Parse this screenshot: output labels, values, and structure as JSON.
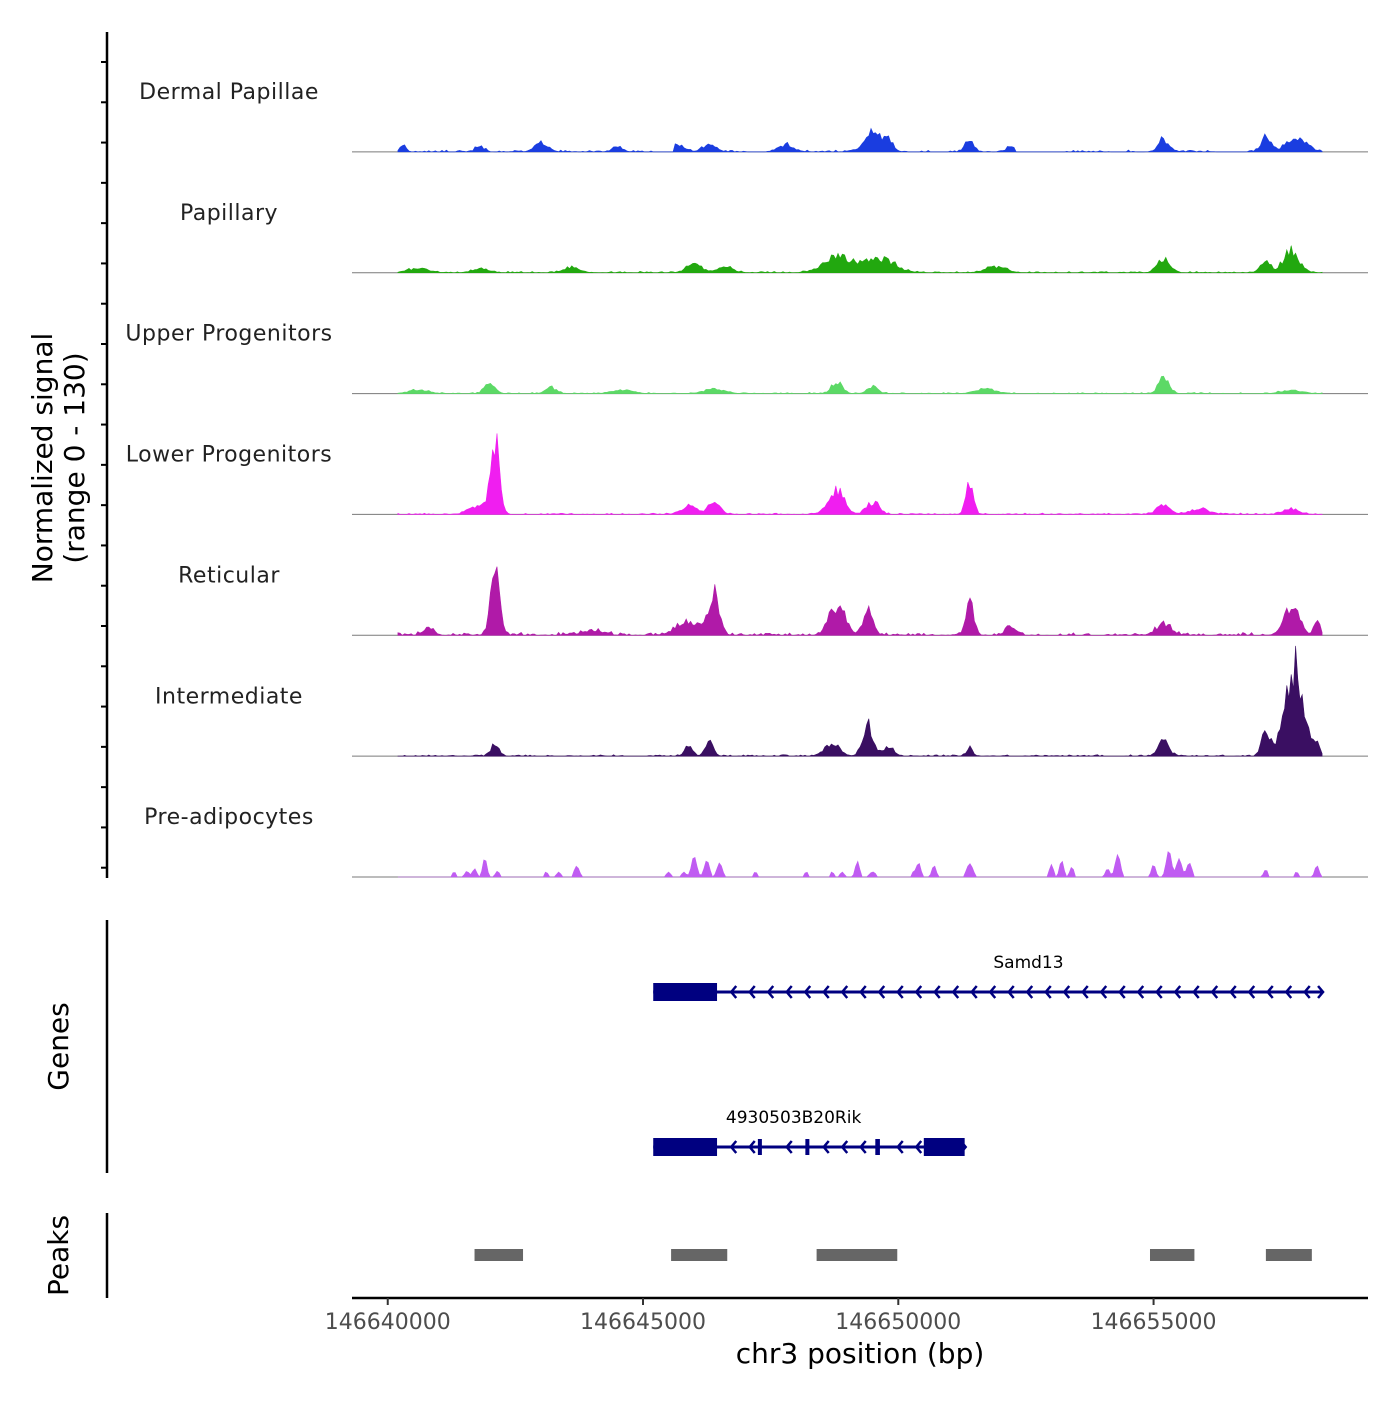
{
  "chart_data": {
    "type": "area",
    "title": "",
    "chromosome": "chr3",
    "xlabel": "chr3 position (bp)",
    "xlim": [
      146639300,
      146659200
    ],
    "xticks": [
      146640000,
      146645000,
      146650000,
      146655000
    ],
    "xtick_labels": [
      "146640000",
      "146645000",
      "146650000",
      "146655000"
    ],
    "ylabel_line1": "Normalized signal",
    "ylabel_line2": "(range 0 - 130)",
    "ylim": [
      0,
      130
    ],
    "data_start": 146640200,
    "data_end": 146658300,
    "coverage_tracks": [
      {
        "name": "Dermal Papillae",
        "color": "#1a3de0",
        "noise": 2.5,
        "gaps": [
          [
            146645300,
            146645600
          ],
          [
            146647200,
            146647400
          ],
          [
            146650600,
            146650900
          ],
          [
            146652300,
            146653200
          ],
          [
            146654200,
            146654500
          ],
          [
            146656200,
            146656700
          ]
        ],
        "peaks": [
          {
            "pos": 146640300,
            "height": 7,
            "width": 60
          },
          {
            "pos": 146641800,
            "height": 6,
            "width": 80
          },
          {
            "pos": 146643000,
            "height": 11,
            "width": 120
          },
          {
            "pos": 146644500,
            "height": 6,
            "width": 100
          },
          {
            "pos": 146645700,
            "height": 8,
            "width": 120
          },
          {
            "pos": 146646300,
            "height": 9,
            "width": 120
          },
          {
            "pos": 146647800,
            "height": 8,
            "width": 150
          },
          {
            "pos": 146649500,
            "height": 22,
            "width": 150
          },
          {
            "pos": 146649800,
            "height": 13,
            "width": 100
          },
          {
            "pos": 146651400,
            "height": 15,
            "width": 80
          },
          {
            "pos": 146652200,
            "height": 7,
            "width": 80
          },
          {
            "pos": 146655200,
            "height": 14,
            "width": 100
          },
          {
            "pos": 146657200,
            "height": 17,
            "width": 100
          },
          {
            "pos": 146657800,
            "height": 15,
            "width": 200
          }
        ]
      },
      {
        "name": "Papillary",
        "color": "#22a80f",
        "noise": 2,
        "gaps": [],
        "peaks": [
          {
            "pos": 146640600,
            "height": 5,
            "width": 200
          },
          {
            "pos": 146641800,
            "height": 5,
            "width": 150
          },
          {
            "pos": 146643600,
            "height": 6,
            "width": 150
          },
          {
            "pos": 146646000,
            "height": 10,
            "width": 150
          },
          {
            "pos": 146646600,
            "height": 7,
            "width": 150
          },
          {
            "pos": 146648800,
            "height": 20,
            "width": 250
          },
          {
            "pos": 146649600,
            "height": 17,
            "width": 300
          },
          {
            "pos": 146651900,
            "height": 7,
            "width": 200
          },
          {
            "pos": 146655200,
            "height": 16,
            "width": 120
          },
          {
            "pos": 146657200,
            "height": 13,
            "width": 100
          },
          {
            "pos": 146657700,
            "height": 25,
            "width": 150
          }
        ]
      },
      {
        "name": "Upper Progenitors",
        "color": "#5cd966",
        "noise": 1.5,
        "gaps": [],
        "peaks": [
          {
            "pos": 146640600,
            "height": 4,
            "width": 200
          },
          {
            "pos": 146642000,
            "height": 12,
            "width": 100
          },
          {
            "pos": 146643200,
            "height": 7,
            "width": 100
          },
          {
            "pos": 146644600,
            "height": 4,
            "width": 200
          },
          {
            "pos": 146646400,
            "height": 5,
            "width": 200
          },
          {
            "pos": 146648800,
            "height": 13,
            "width": 100
          },
          {
            "pos": 146649500,
            "height": 8,
            "width": 100
          },
          {
            "pos": 146651700,
            "height": 5,
            "width": 200
          },
          {
            "pos": 146655200,
            "height": 17,
            "width": 100
          },
          {
            "pos": 146657700,
            "height": 4,
            "width": 200
          }
        ]
      },
      {
        "name": "Lower Progenitors",
        "color": "#f01ef0",
        "noise": 2,
        "gaps": [],
        "peaks": [
          {
            "pos": 146642100,
            "height": 88,
            "width": 80
          },
          {
            "pos": 146641800,
            "height": 10,
            "width": 200
          },
          {
            "pos": 146645900,
            "height": 10,
            "width": 150
          },
          {
            "pos": 146646400,
            "height": 13,
            "width": 120
          },
          {
            "pos": 146648800,
            "height": 28,
            "width": 150
          },
          {
            "pos": 146649500,
            "height": 14,
            "width": 120
          },
          {
            "pos": 146651400,
            "height": 38,
            "width": 70
          },
          {
            "pos": 146655200,
            "height": 11,
            "width": 120
          },
          {
            "pos": 146655900,
            "height": 6,
            "width": 200
          },
          {
            "pos": 146657700,
            "height": 7,
            "width": 150
          }
        ]
      },
      {
        "name": "Reticular",
        "color": "#b01aa8",
        "noise": 4,
        "gaps": [],
        "peaks": [
          {
            "pos": 146640800,
            "height": 10,
            "width": 100
          },
          {
            "pos": 146642100,
            "height": 73,
            "width": 90
          },
          {
            "pos": 146644000,
            "height": 6,
            "width": 200
          },
          {
            "pos": 146645900,
            "height": 14,
            "width": 250
          },
          {
            "pos": 146646400,
            "height": 40,
            "width": 100
          },
          {
            "pos": 146648800,
            "height": 35,
            "width": 150
          },
          {
            "pos": 146649400,
            "height": 27,
            "width": 100
          },
          {
            "pos": 146651400,
            "height": 36,
            "width": 80
          },
          {
            "pos": 146652200,
            "height": 12,
            "width": 100
          },
          {
            "pos": 146655200,
            "height": 13,
            "width": 150
          },
          {
            "pos": 146657700,
            "height": 32,
            "width": 150
          },
          {
            "pos": 146658200,
            "height": 18,
            "width": 60
          }
        ]
      },
      {
        "name": "Intermediate",
        "color": "#3a0f62",
        "noise": 2,
        "gaps": [
          [
            146644700,
            146645100
          ]
        ],
        "peaks": [
          {
            "pos": 146642100,
            "height": 14,
            "width": 80
          },
          {
            "pos": 146645900,
            "height": 12,
            "width": 80
          },
          {
            "pos": 146646300,
            "height": 15,
            "width": 80
          },
          {
            "pos": 146648700,
            "height": 14,
            "width": 150
          },
          {
            "pos": 146649400,
            "height": 38,
            "width": 100
          },
          {
            "pos": 146649800,
            "height": 12,
            "width": 100
          },
          {
            "pos": 146651400,
            "height": 8,
            "width": 60
          },
          {
            "pos": 146655200,
            "height": 19,
            "width": 100
          },
          {
            "pos": 146657200,
            "height": 30,
            "width": 80
          },
          {
            "pos": 146657750,
            "height": 100,
            "width": 180
          },
          {
            "pos": 146658200,
            "height": 10,
            "width": 60
          }
        ]
      },
      {
        "name": "Pre-adipocytes",
        "color": "#c05cf2",
        "noise": 0,
        "gaps": [],
        "peaks": [
          {
            "pos": 146641300,
            "height": 6,
            "width": 40
          },
          {
            "pos": 146641550,
            "height": 7,
            "width": 40
          },
          {
            "pos": 146641700,
            "height": 10,
            "width": 40
          },
          {
            "pos": 146641900,
            "height": 23,
            "width": 40
          },
          {
            "pos": 146642150,
            "height": 7,
            "width": 40
          },
          {
            "pos": 146643100,
            "height": 6,
            "width": 40
          },
          {
            "pos": 146643350,
            "height": 6,
            "width": 40
          },
          {
            "pos": 146643700,
            "height": 13,
            "width": 50
          },
          {
            "pos": 146645500,
            "height": 6,
            "width": 40
          },
          {
            "pos": 146645800,
            "height": 6,
            "width": 40
          },
          {
            "pos": 146646000,
            "height": 25,
            "width": 50
          },
          {
            "pos": 146646250,
            "height": 20,
            "width": 50
          },
          {
            "pos": 146646500,
            "height": 17,
            "width": 50
          },
          {
            "pos": 146647200,
            "height": 6,
            "width": 40
          },
          {
            "pos": 146648200,
            "height": 6,
            "width": 40
          },
          {
            "pos": 146648700,
            "height": 6,
            "width": 40
          },
          {
            "pos": 146648900,
            "height": 6,
            "width": 40
          },
          {
            "pos": 146649200,
            "height": 19,
            "width": 40
          },
          {
            "pos": 146649500,
            "height": 6,
            "width": 60
          },
          {
            "pos": 146650300,
            "height": 6,
            "width": 40
          },
          {
            "pos": 146650400,
            "height": 17,
            "width": 40
          },
          {
            "pos": 146650700,
            "height": 14,
            "width": 40
          },
          {
            "pos": 146651400,
            "height": 16,
            "width": 60
          },
          {
            "pos": 146653000,
            "height": 15,
            "width": 40
          },
          {
            "pos": 146653200,
            "height": 20,
            "width": 40
          },
          {
            "pos": 146653400,
            "height": 12,
            "width": 40
          },
          {
            "pos": 146654100,
            "height": 10,
            "width": 40
          },
          {
            "pos": 146654300,
            "height": 27,
            "width": 50
          },
          {
            "pos": 146655000,
            "height": 15,
            "width": 40
          },
          {
            "pos": 146655300,
            "height": 32,
            "width": 50
          },
          {
            "pos": 146655500,
            "height": 22,
            "width": 50
          },
          {
            "pos": 146655700,
            "height": 17,
            "width": 50
          },
          {
            "pos": 146657200,
            "height": 9,
            "width": 40
          },
          {
            "pos": 146657800,
            "height": 6,
            "width": 40
          },
          {
            "pos": 146658200,
            "height": 14,
            "width": 40
          }
        ]
      }
    ],
    "genes_label": "Genes",
    "genes": [
      {
        "name": "Samd13",
        "strand": "-",
        "start": 146645200,
        "end": 146658300,
        "exons": [
          [
            146645200,
            146646450
          ]
        ]
      },
      {
        "name": "4930503B20Rik",
        "strand": "-",
        "start": 146645200,
        "end": 146651300,
        "exons": [
          [
            146645200,
            146646450
          ],
          [
            146647250,
            146647320
          ],
          [
            146648180,
            146648250
          ],
          [
            146649550,
            146649640
          ],
          [
            146650500,
            146651300
          ]
        ]
      }
    ],
    "peaks_label": "Peaks",
    "peaks_color": "#666666",
    "peaks": [
      [
        146641700,
        146642650
      ],
      [
        146645550,
        146646650
      ],
      [
        146648400,
        146649980
      ],
      [
        146654930,
        146655800
      ],
      [
        146657200,
        146658100
      ]
    ]
  }
}
